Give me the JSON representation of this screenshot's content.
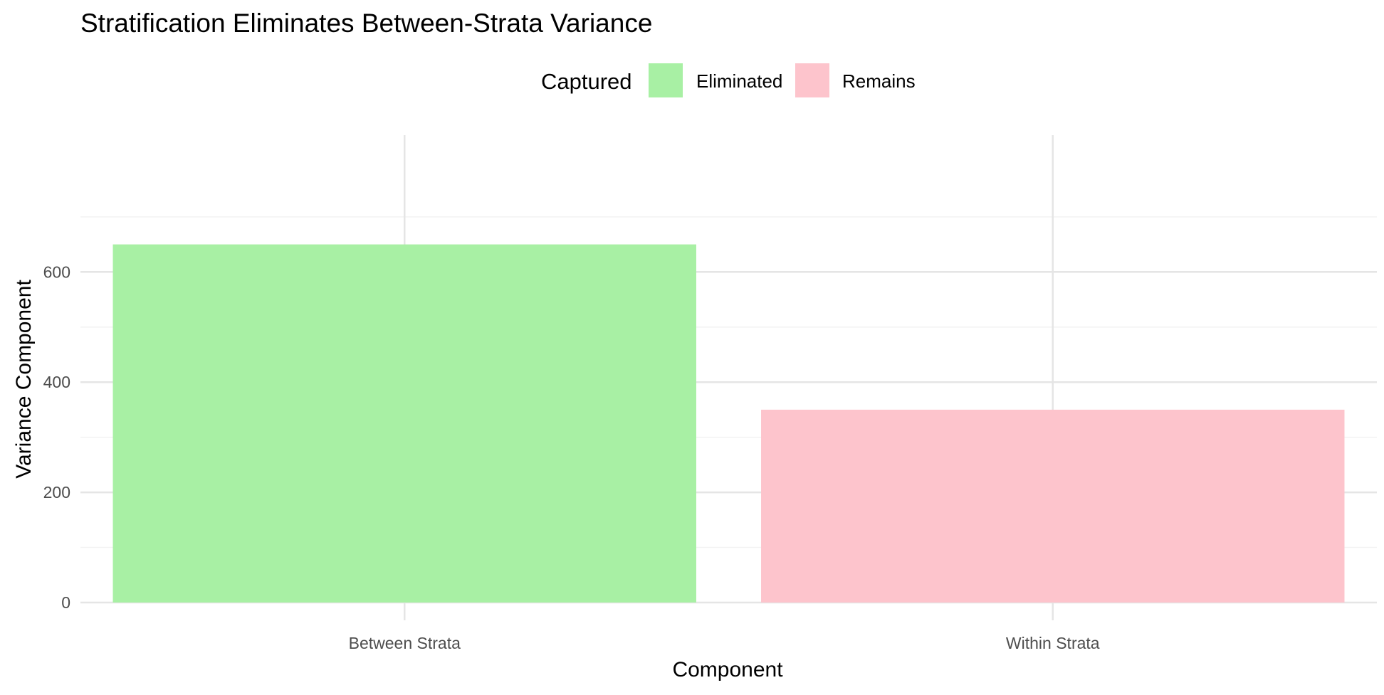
{
  "chart_data": {
    "type": "bar",
    "title": "Stratification Eliminates Between-Strata Variance",
    "xlabel": "Component",
    "ylabel": "Variance Component",
    "categories": [
      "Between Strata",
      "Within Strata"
    ],
    "values": [
      650,
      350
    ],
    "fill": [
      "Eliminated",
      "Remains"
    ],
    "ylim": [
      0,
      700
    ],
    "yticks": [
      0,
      200,
      400,
      600
    ],
    "grid": true,
    "legend": {
      "title": "Captured",
      "placement": "top",
      "entries": [
        {
          "label": "Eliminated",
          "color": "#a8f0a4"
        },
        {
          "label": "Remains",
          "color": "#fdc4cc"
        }
      ]
    }
  },
  "colors": {
    "background": "#ffffff",
    "grid_major": "#e5e5e5",
    "grid_minor": "#f2f2f2",
    "Eliminated": "#a8f0a4",
    "Remains": "#fdc4cc"
  }
}
